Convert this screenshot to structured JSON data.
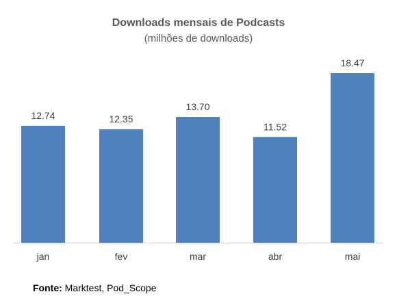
{
  "chart_data": {
    "type": "bar",
    "title": "Downloads mensais de Podcasts",
    "subtitle": "(milhões de downloads)",
    "categories": [
      "jan",
      "fev",
      "mar",
      "abr",
      "mai"
    ],
    "values": [
      12.74,
      12.35,
      13.7,
      11.52,
      18.47
    ],
    "value_labels": [
      "12.74",
      "12.35",
      "13.70",
      "11.52",
      "18.47"
    ],
    "ylim": [
      0,
      18.47
    ],
    "grid": false,
    "legend": "none",
    "bar_color": "#4f81bd",
    "xlabel": "",
    "ylabel": ""
  },
  "source": {
    "label": "Fonte:",
    "text": " Marktest, Pod_Scope"
  }
}
